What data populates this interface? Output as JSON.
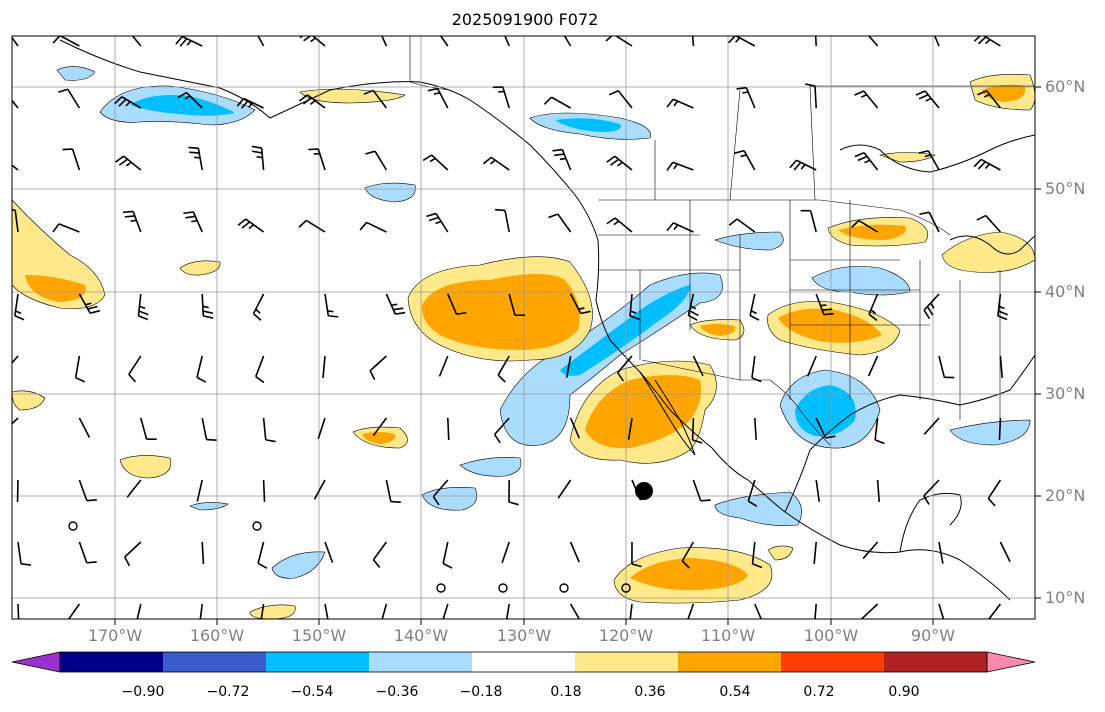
{
  "title": "2025091900 F072",
  "lat_labels": [
    "60°N",
    "50°N",
    "40°N",
    "30°N",
    "20°N",
    "10°N"
  ],
  "lon_labels": [
    "170°W",
    "160°W",
    "150°W",
    "140°W",
    "130°W",
    "120°W",
    "110°W",
    "100°W",
    "90°W"
  ],
  "colorbar": {
    "tick_labels": [
      "−0.90",
      "−0.72",
      "−0.54",
      "−0.36",
      "−0.18",
      "0.18",
      "0.36",
      "0.54",
      "0.72",
      "0.90"
    ],
    "colors": [
      "#9932cc",
      "#00008b",
      "#3a5bcc",
      "#00bfff",
      "#aadcff",
      "#ffffff",
      "#ffe98a",
      "#ffa500",
      "#ff3f00",
      "#b22222",
      "#ff88b0"
    ]
  },
  "map": {
    "extent": {
      "lon_min": -180,
      "lon_max": -80,
      "lat_min": 8,
      "lat_max": 65
    },
    "gridlines": true,
    "storm_marker": {
      "lon": -118.5,
      "lat": 20.5
    }
  }
}
